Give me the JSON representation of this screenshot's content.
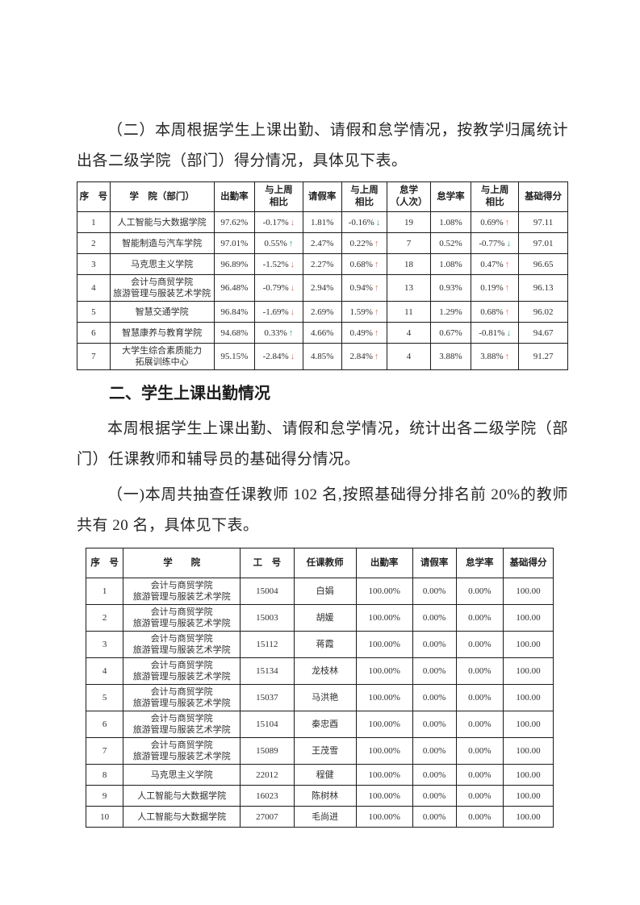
{
  "document": {
    "intro_paragraph": "（二）本周根据学生上课出勤、请假和怠学情况，按教学归属统计出各二级学院（部门）得分情况，具体见下表。",
    "section2_heading": "二、学生上课出勤情况",
    "section2_paragraph": "本周根据学生上课出勤、请假和怠学情况，统计出各二级学院（部门）任课教师和辅导员的基础得分情况。",
    "section2_sub_paragraph": "（一)本周共抽查任课教师 102 名,按照基础得分排名前 20%的教师共有 20 名，具体见下表。"
  },
  "colors": {
    "arrow_red": "#ed6c5c",
    "arrow_green": "#2fa76a"
  },
  "college_score_table": {
    "headers": [
      "序　号",
      "学　院（部门）",
      "出勤率",
      "与上周\n相比",
      "请假率",
      "与上周\n相比",
      "怠学\n（人次）",
      "怠学率",
      "与上周\n相比",
      "基础得分"
    ],
    "rows": [
      {
        "no": "1",
        "college": "人工智能与大数据学院",
        "attendance": "97.62%",
        "attendance_delta": {
          "value": "-0.17%",
          "direction": "down",
          "tone": "red"
        },
        "leave": "1.81%",
        "leave_delta": {
          "value": "-0.16%",
          "direction": "down",
          "tone": "green"
        },
        "truancy_count": "19",
        "truancy_rate": "1.08%",
        "truancy_delta": {
          "value": "0.69%",
          "direction": "up",
          "tone": "red"
        },
        "base_score": "97.11"
      },
      {
        "no": "2",
        "college": "智能制造与汽车学院",
        "attendance": "97.01%",
        "attendance_delta": {
          "value": "0.55%",
          "direction": "up",
          "tone": "green"
        },
        "leave": "2.47%",
        "leave_delta": {
          "value": "0.22%",
          "direction": "up",
          "tone": "red"
        },
        "truancy_count": "7",
        "truancy_rate": "0.52%",
        "truancy_delta": {
          "value": "-0.77%",
          "direction": "down",
          "tone": "green"
        },
        "base_score": "97.01"
      },
      {
        "no": "3",
        "college": "马克思主义学院",
        "attendance": "96.89%",
        "attendance_delta": {
          "value": "-1.52%",
          "direction": "down",
          "tone": "red"
        },
        "leave": "2.27%",
        "leave_delta": {
          "value": "0.68%",
          "direction": "up",
          "tone": "red"
        },
        "truancy_count": "18",
        "truancy_rate": "1.08%",
        "truancy_delta": {
          "value": "0.47%",
          "direction": "up",
          "tone": "red"
        },
        "base_score": "96.65"
      },
      {
        "no": "4",
        "college": "会计与商贸学院\n旅游管理与服装艺术学院",
        "attendance": "96.48%",
        "attendance_delta": {
          "value": "-0.79%",
          "direction": "down",
          "tone": "red"
        },
        "leave": "2.94%",
        "leave_delta": {
          "value": "0.94%",
          "direction": "up",
          "tone": "red"
        },
        "truancy_count": "13",
        "truancy_rate": "0.93%",
        "truancy_delta": {
          "value": "0.19%",
          "direction": "up",
          "tone": "red"
        },
        "base_score": "96.13"
      },
      {
        "no": "5",
        "college": "智慧交通学院",
        "attendance": "96.84%",
        "attendance_delta": {
          "value": "-1.69%",
          "direction": "down",
          "tone": "red"
        },
        "leave": "2.69%",
        "leave_delta": {
          "value": "1.59%",
          "direction": "up",
          "tone": "red"
        },
        "truancy_count": "11",
        "truancy_rate": "1.29%",
        "truancy_delta": {
          "value": "0.68%",
          "direction": "up",
          "tone": "red"
        },
        "base_score": "96.02"
      },
      {
        "no": "6",
        "college": "智慧康养与教育学院",
        "attendance": "94.68%",
        "attendance_delta": {
          "value": "0.33%",
          "direction": "up",
          "tone": "green"
        },
        "leave": "4.66%",
        "leave_delta": {
          "value": "0.49%",
          "direction": "up",
          "tone": "red"
        },
        "truancy_count": "4",
        "truancy_rate": "0.67%",
        "truancy_delta": {
          "value": "-0.81%",
          "direction": "down",
          "tone": "green"
        },
        "base_score": "94.67"
      },
      {
        "no": "7",
        "college": "大学生综合素质能力\n拓展训练中心",
        "attendance": "95.15%",
        "attendance_delta": {
          "value": "-2.84%",
          "direction": "down",
          "tone": "red"
        },
        "leave": "4.85%",
        "leave_delta": {
          "value": "2.84%",
          "direction": "up",
          "tone": "red"
        },
        "truancy_count": "4",
        "truancy_rate": "3.88%",
        "truancy_delta": {
          "value": "3.88%",
          "direction": "up",
          "tone": "red"
        },
        "base_score": "91.27"
      }
    ]
  },
  "teacher_score_table": {
    "headers": [
      "序　号",
      "学　　院",
      "工　号",
      "任课教师",
      "出勤率",
      "请假率",
      "怠学率",
      "基础得分"
    ],
    "rows": [
      {
        "no": "1",
        "college": "会计与商贸学院\n旅游管理与服装艺术学院",
        "staff_id": "15004",
        "teacher": "白娟",
        "attendance": "100.00%",
        "leave": "0.00%",
        "truancy": "0.00%",
        "base_score": "100.00"
      },
      {
        "no": "2",
        "college": "会计与商贸学院\n旅游管理与服装艺术学院",
        "staff_id": "15003",
        "teacher": "胡媛",
        "attendance": "100.00%",
        "leave": "0.00%",
        "truancy": "0.00%",
        "base_score": "100.00"
      },
      {
        "no": "3",
        "college": "会计与商贸学院\n旅游管理与服装艺术学院",
        "staff_id": "15112",
        "teacher": "蒋霞",
        "attendance": "100.00%",
        "leave": "0.00%",
        "truancy": "0.00%",
        "base_score": "100.00"
      },
      {
        "no": "4",
        "college": "会计与商贸学院\n旅游管理与服装艺术学院",
        "staff_id": "15134",
        "teacher": "龙枝林",
        "attendance": "100.00%",
        "leave": "0.00%",
        "truancy": "0.00%",
        "base_score": "100.00"
      },
      {
        "no": "5",
        "college": "会计与商贸学院\n旅游管理与服装艺术学院",
        "staff_id": "15037",
        "teacher": "马洪艳",
        "attendance": "100.00%",
        "leave": "0.00%",
        "truancy": "0.00%",
        "base_score": "100.00"
      },
      {
        "no": "6",
        "college": "会计与商贸学院\n旅游管理与服装艺术学院",
        "staff_id": "15104",
        "teacher": "秦忠酉",
        "attendance": "100.00%",
        "leave": "0.00%",
        "truancy": "0.00%",
        "base_score": "100.00"
      },
      {
        "no": "7",
        "college": "会计与商贸学院\n旅游管理与服装艺术学院",
        "staff_id": "15089",
        "teacher": "王茂雪",
        "attendance": "100.00%",
        "leave": "0.00%",
        "truancy": "0.00%",
        "base_score": "100.00"
      },
      {
        "no": "8",
        "college": "马克思主义学院",
        "staff_id": "22012",
        "teacher": "程健",
        "attendance": "100.00%",
        "leave": "0.00%",
        "truancy": "0.00%",
        "base_score": "100.00"
      },
      {
        "no": "9",
        "college": "人工智能与大数据学院",
        "staff_id": "16023",
        "teacher": "陈树林",
        "attendance": "100.00%",
        "leave": "0.00%",
        "truancy": "0.00%",
        "base_score": "100.00"
      },
      {
        "no": "10",
        "college": "人工智能与大数据学院",
        "staff_id": "27007",
        "teacher": "毛尚进",
        "attendance": "100.00%",
        "leave": "0.00%",
        "truancy": "0.00%",
        "base_score": "100.00"
      }
    ]
  }
}
